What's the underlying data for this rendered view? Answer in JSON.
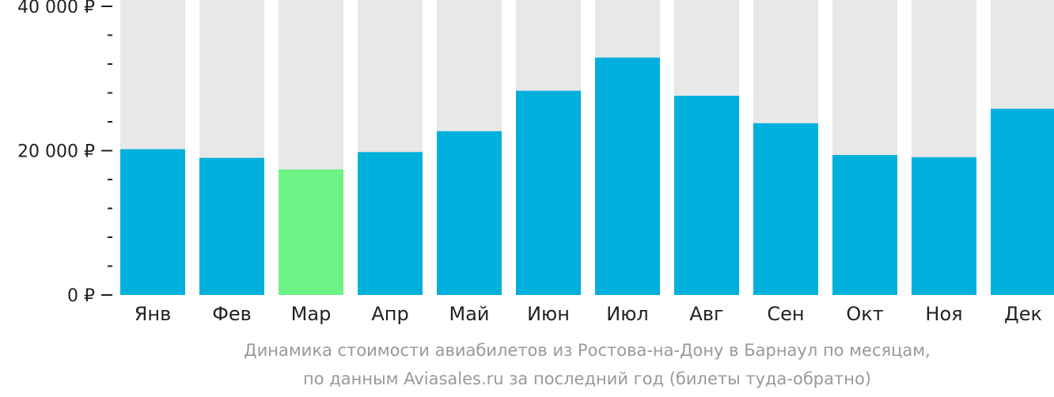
{
  "chart_data": {
    "type": "bar",
    "categories": [
      "Янв",
      "Фев",
      "Мар",
      "Апр",
      "Май",
      "Июн",
      "Июл",
      "Авг",
      "Сен",
      "Окт",
      "Ноя",
      "Дек"
    ],
    "values": [
      20200,
      19000,
      17400,
      19800,
      22700,
      28300,
      32900,
      27600,
      23800,
      19400,
      19100,
      25800
    ],
    "highlight_index": 2,
    "ylim": [
      0,
      40000
    ],
    "y_ticks": [
      {
        "value": 0,
        "label": "0 ₽"
      },
      {
        "value": 20000,
        "label": "20 000 ₽"
      },
      {
        "value": 40000,
        "label": "40 000 ₽"
      }
    ],
    "minor_tick_step": 4000,
    "title": "",
    "xlabel": "",
    "ylabel": "",
    "grid": false,
    "colors": {
      "bar": "#00b0dc",
      "highlight": "#6cf285",
      "background_bar": "#e8e8e8",
      "axis": "#222222",
      "caption": "#999999"
    }
  },
  "caption": {
    "line1": "Динамика стоимости авиабилетов из Ростова-на-Дону в Барнаул по месяцам,",
    "line2": "по данным Aviasales.ru за последний год (билеты туда-обратно)"
  }
}
